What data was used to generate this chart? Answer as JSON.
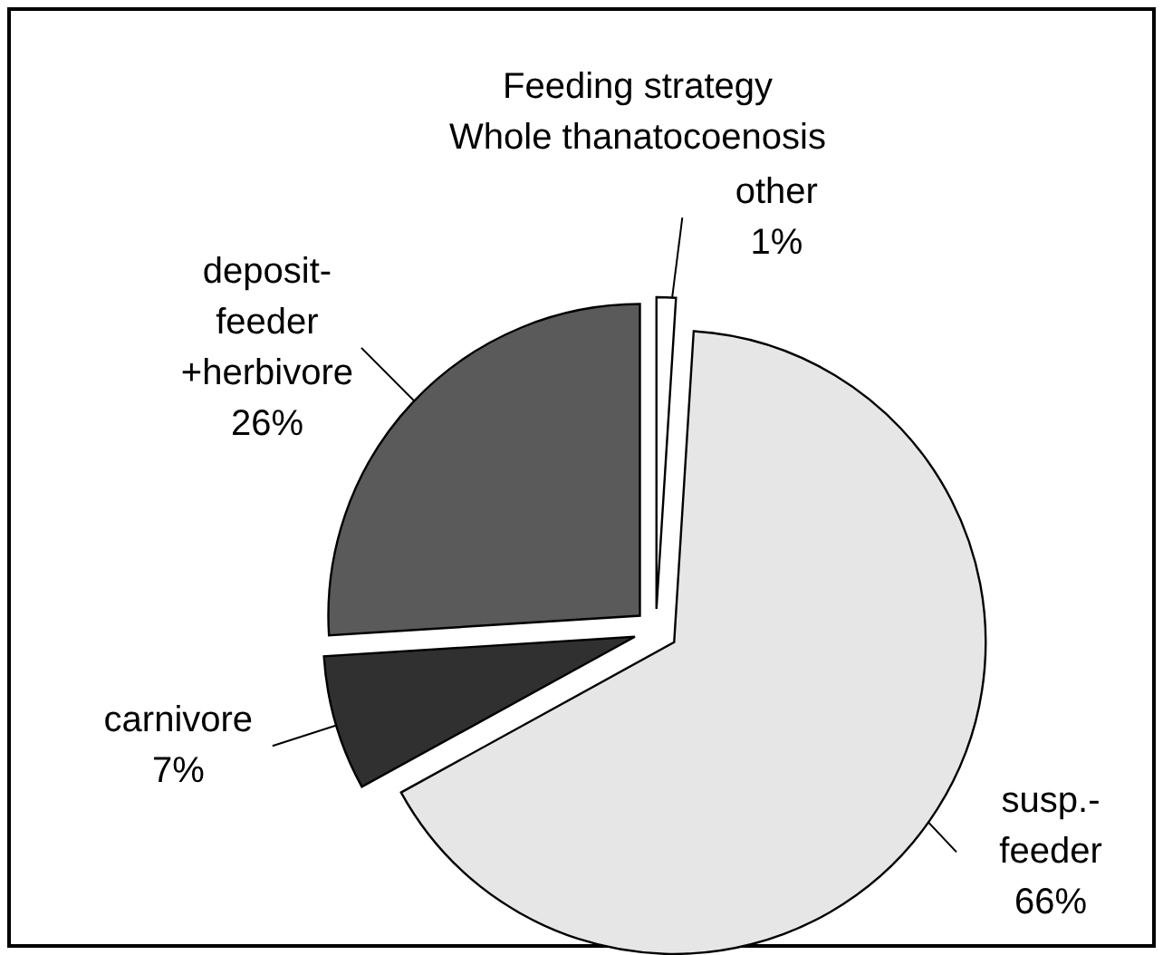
{
  "chart_data": {
    "type": "pie",
    "title": "Feeding strategy\nWhole thanatocoenosis",
    "categories": [
      "other",
      "susp.-\nfeeder",
      "carnivore",
      "deposit-\nfeeder\n+herbivore"
    ],
    "values": [
      1,
      66,
      7,
      26
    ],
    "value_labels": [
      "1%",
      "66%",
      "7%",
      "26%"
    ],
    "colors": [
      "#ffffff",
      "#e6e6e6",
      "#303030",
      "#5a5a5a"
    ]
  }
}
